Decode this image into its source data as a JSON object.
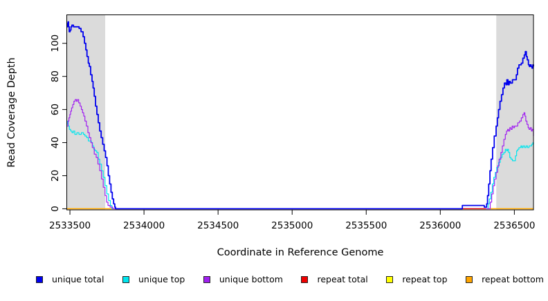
{
  "chart_data": {
    "type": "line",
    "style": "step-coverage-plot",
    "xlabel": "Coordinate in Reference Genome",
    "ylabel": "Read Coverage Depth",
    "xlim": [
      2533481,
      2536629
    ],
    "ylim": [
      -0.65,
      117
    ],
    "x_ticks": [
      2533500,
      2534000,
      2534500,
      2535000,
      2535500,
      2536000,
      2536500
    ],
    "y_ticks": [
      0,
      20,
      40,
      60,
      80,
      100
    ],
    "grid": "off",
    "legend_position": "bottom",
    "shaded_region_color": "#dbdbdb",
    "shaded_regions": [
      [
        2533481,
        2533738
      ],
      [
        2536378,
        2536629
      ]
    ],
    "draw_order": [
      4,
      5,
      1,
      2,
      3,
      0
    ],
    "series": [
      {
        "name": "unique total",
        "color": "#0000EE",
        "width": 1.8,
        "points": [
          [
            2533481,
            110
          ],
          [
            2533484,
            112
          ],
          [
            2533487,
            113
          ],
          [
            2533491,
            110
          ],
          [
            2533495,
            107
          ],
          [
            2533501,
            108
          ],
          [
            2533507,
            110
          ],
          [
            2533513,
            111
          ],
          [
            2533524,
            110
          ],
          [
            2533548,
            110
          ],
          [
            2533562,
            109
          ],
          [
            2533575,
            107
          ],
          [
            2533589,
            104
          ],
          [
            2533598,
            100
          ],
          [
            2533607,
            96
          ],
          [
            2533615,
            92
          ],
          [
            2533624,
            88
          ],
          [
            2533631,
            86
          ],
          [
            2533640,
            81
          ],
          [
            2533649,
            77
          ],
          [
            2533656,
            73
          ],
          [
            2533664,
            68
          ],
          [
            2533673,
            62
          ],
          [
            2533682,
            57
          ],
          [
            2533691,
            52
          ],
          [
            2533701,
            47
          ],
          [
            2533711,
            43
          ],
          [
            2533721,
            39
          ],
          [
            2533731,
            35
          ],
          [
            2533740,
            31
          ],
          [
            2533750,
            26
          ],
          [
            2533759,
            20
          ],
          [
            2533768,
            15
          ],
          [
            2533777,
            10
          ],
          [
            2533786,
            6
          ],
          [
            2533795,
            3
          ],
          [
            2533803,
            1
          ],
          [
            2533808,
            0
          ],
          [
            2536147,
            0
          ],
          [
            2536149,
            2
          ],
          [
            2536293,
            2
          ],
          [
            2536297,
            1
          ],
          [
            2536308,
            1
          ],
          [
            2536313,
            3
          ],
          [
            2536319,
            8
          ],
          [
            2536327,
            15
          ],
          [
            2536335,
            23
          ],
          [
            2536343,
            30
          ],
          [
            2536353,
            37
          ],
          [
            2536364,
            44
          ],
          [
            2536377,
            50
          ],
          [
            2536385,
            55
          ],
          [
            2536393,
            60
          ],
          [
            2536403,
            65
          ],
          [
            2536413,
            69
          ],
          [
            2536423,
            73
          ],
          [
            2536433,
            76
          ],
          [
            2536443,
            75
          ],
          [
            2536449,
            78
          ],
          [
            2536457,
            75
          ],
          [
            2536465,
            77
          ],
          [
            2536473,
            76
          ],
          [
            2536487,
            78
          ],
          [
            2536501,
            78
          ],
          [
            2536513,
            81
          ],
          [
            2536521,
            85
          ],
          [
            2536531,
            87
          ],
          [
            2536547,
            88
          ],
          [
            2536557,
            91
          ],
          [
            2536567,
            93
          ],
          [
            2536574,
            95
          ],
          [
            2536581,
            92
          ],
          [
            2536587,
            90
          ],
          [
            2536595,
            87
          ],
          [
            2536601,
            86
          ],
          [
            2536607,
            87
          ],
          [
            2536613,
            86
          ],
          [
            2536619,
            85
          ],
          [
            2536625,
            87
          ],
          [
            2536629,
            86
          ]
        ]
      },
      {
        "name": "unique top",
        "color": "#00E5EE",
        "width": 1.2,
        "points": [
          [
            2533481,
            51
          ],
          [
            2533484,
            53
          ],
          [
            2533489,
            50
          ],
          [
            2533496,
            48
          ],
          [
            2533505,
            47
          ],
          [
            2533514,
            46
          ],
          [
            2533523,
            47
          ],
          [
            2533533,
            45
          ],
          [
            2533547,
            46
          ],
          [
            2533561,
            45
          ],
          [
            2533577,
            46
          ],
          [
            2533591,
            45
          ],
          [
            2533601,
            44
          ],
          [
            2533613,
            43
          ],
          [
            2533624,
            41
          ],
          [
            2533636,
            41
          ],
          [
            2533645,
            40
          ],
          [
            2533653,
            38
          ],
          [
            2533661,
            36
          ],
          [
            2533669,
            35
          ],
          [
            2533681,
            34
          ],
          [
            2533691,
            30
          ],
          [
            2533701,
            27
          ],
          [
            2533713,
            23
          ],
          [
            2533725,
            19
          ],
          [
            2533737,
            14
          ],
          [
            2533749,
            9
          ],
          [
            2533761,
            5
          ],
          [
            2533773,
            2
          ],
          [
            2533783,
            0
          ],
          [
            2536315,
            0
          ],
          [
            2536323,
            3
          ],
          [
            2536331,
            6
          ],
          [
            2536341,
            10
          ],
          [
            2536351,
            15
          ],
          [
            2536361,
            19
          ],
          [
            2536371,
            22
          ],
          [
            2536381,
            25
          ],
          [
            2536393,
            28
          ],
          [
            2536405,
            31
          ],
          [
            2536417,
            33
          ],
          [
            2536429,
            34
          ],
          [
            2536439,
            36
          ],
          [
            2536447,
            35
          ],
          [
            2536454,
            36
          ],
          [
            2536461,
            34
          ],
          [
            2536469,
            31
          ],
          [
            2536477,
            30
          ],
          [
            2536487,
            29
          ],
          [
            2536497,
            29
          ],
          [
            2536507,
            32
          ],
          [
            2536515,
            35
          ],
          [
            2536523,
            36
          ],
          [
            2536531,
            37
          ],
          [
            2536544,
            38
          ],
          [
            2536551,
            37
          ],
          [
            2536559,
            38
          ],
          [
            2536569,
            37
          ],
          [
            2536579,
            38
          ],
          [
            2536589,
            37
          ],
          [
            2536599,
            38
          ],
          [
            2536609,
            38
          ],
          [
            2536617,
            39
          ],
          [
            2536625,
            40
          ],
          [
            2536629,
            39
          ]
        ]
      },
      {
        "name": "unique bottom",
        "color": "#A020F0",
        "width": 1.2,
        "points": [
          [
            2533481,
            50
          ],
          [
            2533487,
            53
          ],
          [
            2533493,
            55
          ],
          [
            2533499,
            57
          ],
          [
            2533505,
            59
          ],
          [
            2533511,
            61
          ],
          [
            2533519,
            63
          ],
          [
            2533527,
            65
          ],
          [
            2533535,
            66
          ],
          [
            2533544,
            65
          ],
          [
            2533551,
            66
          ],
          [
            2533559,
            64
          ],
          [
            2533569,
            62
          ],
          [
            2533577,
            60
          ],
          [
            2533585,
            58
          ],
          [
            2533593,
            56
          ],
          [
            2533601,
            53
          ],
          [
            2533611,
            50
          ],
          [
            2533621,
            46
          ],
          [
            2533631,
            43
          ],
          [
            2533641,
            40
          ],
          [
            2533651,
            37
          ],
          [
            2533664,
            33
          ],
          [
            2533677,
            31
          ],
          [
            2533689,
            27
          ],
          [
            2533701,
            23
          ],
          [
            2533713,
            18
          ],
          [
            2533725,
            13
          ],
          [
            2533737,
            8
          ],
          [
            2533747,
            4
          ],
          [
            2533757,
            2
          ],
          [
            2533771,
            1
          ],
          [
            2533789,
            0
          ],
          [
            2536329,
            0
          ],
          [
            2536337,
            4
          ],
          [
            2536347,
            9
          ],
          [
            2536357,
            14
          ],
          [
            2536367,
            18
          ],
          [
            2536377,
            22
          ],
          [
            2536387,
            26
          ],
          [
            2536397,
            30
          ],
          [
            2536409,
            34
          ],
          [
            2536419,
            38
          ],
          [
            2536429,
            42
          ],
          [
            2536439,
            45
          ],
          [
            2536447,
            47
          ],
          [
            2536455,
            48
          ],
          [
            2536461,
            47
          ],
          [
            2536469,
            49
          ],
          [
            2536477,
            48
          ],
          [
            2536485,
            50
          ],
          [
            2536493,
            49
          ],
          [
            2536501,
            50
          ],
          [
            2536511,
            50
          ],
          [
            2536523,
            52
          ],
          [
            2536535,
            53
          ],
          [
            2536547,
            55
          ],
          [
            2536557,
            57
          ],
          [
            2536565,
            58
          ],
          [
            2536571,
            56
          ],
          [
            2536577,
            53
          ],
          [
            2536585,
            51
          ],
          [
            2536593,
            49
          ],
          [
            2536599,
            48
          ],
          [
            2536607,
            49
          ],
          [
            2536615,
            47
          ],
          [
            2536621,
            48
          ],
          [
            2536629,
            44
          ]
        ]
      },
      {
        "name": "repeat total",
        "color": "#EE0000",
        "width": 1.2,
        "points": [
          [
            2536147,
            0
          ],
          [
            2536307,
            0
          ]
        ]
      },
      {
        "name": "repeat top",
        "color": "#FFFF00",
        "width": 1.2,
        "points": [
          [
            2533481,
            0
          ],
          [
            2536629,
            0
          ]
        ]
      },
      {
        "name": "repeat bottom",
        "color": "#FFA500",
        "width": 1.5,
        "points": [
          [
            2533481,
            0
          ],
          [
            2536629,
            0
          ]
        ]
      }
    ]
  }
}
